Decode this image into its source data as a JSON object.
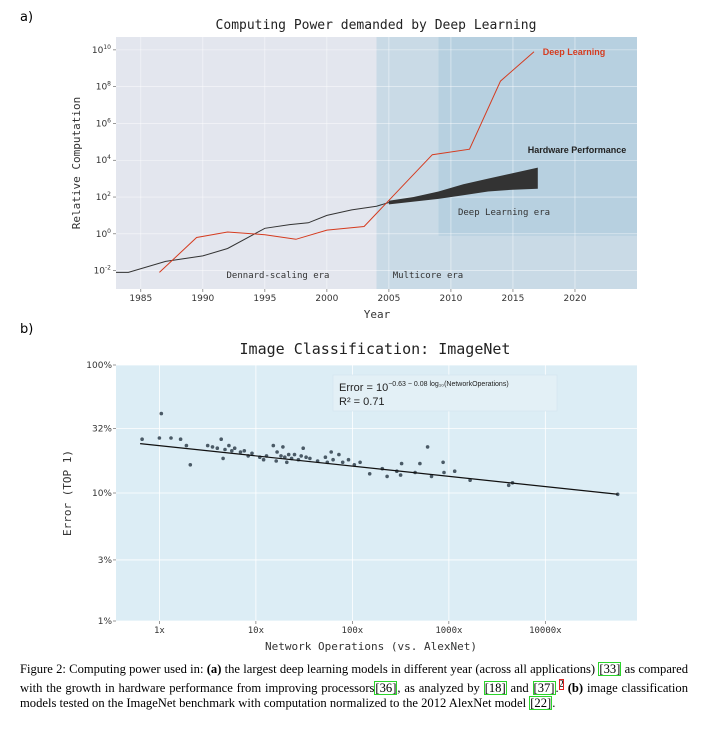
{
  "panel_a_label": "a)",
  "panel_b_label": "b)",
  "chart_data": [
    {
      "type": "line",
      "title": "Computing Power demanded by Deep Learning",
      "xlabel": "Year",
      "ylabel": "Relative Computation",
      "xlim": [
        1983,
        2025
      ],
      "ylim_exp": [
        -3,
        10.7
      ],
      "y_scale": "log",
      "x_ticks": [
        "1985",
        "1990",
        "1995",
        "2000",
        "2005",
        "2010",
        "2015",
        "2020"
      ],
      "y_ticks": [
        {
          "base": "10",
          "exp": "10"
        },
        {
          "base": "10",
          "exp": "8"
        },
        {
          "base": "10",
          "exp": "6"
        },
        {
          "base": "10",
          "exp": "4"
        },
        {
          "base": "10",
          "exp": "2"
        },
        {
          "base": "10",
          "exp": "0"
        },
        {
          "base": "10",
          "exp": "-2"
        }
      ],
      "y_tick_exps": [
        10,
        8,
        6,
        4,
        2,
        0,
        -2
      ],
      "eras": [
        {
          "label": "Dennard-scaling era",
          "x_start": 1983,
          "x_end": 2004,
          "color": "#e3e6ee"
        },
        {
          "label": "Multicore era",
          "x_start": 2004,
          "x_end": 2025,
          "color": "#c9dae6"
        },
        {
          "label": "Deep Learning era",
          "x_start": 2009,
          "x_end": 2025,
          "color": "#b7d0e0"
        }
      ],
      "series": [
        {
          "name": "Deep Learning",
          "color": "#d53b1f",
          "x": [
            1986.5,
            1989.5,
            1992,
            1995,
            1997.5,
            2000,
            2003,
            2008.5,
            2011.5,
            2014,
            2016.7
          ],
          "y_exp": [
            -2.1,
            -0.2,
            0.1,
            -0.05,
            -0.3,
            0.2,
            0.4,
            4.3,
            4.6,
            8.3,
            9.9
          ]
        },
        {
          "name": "",
          "color": "#333333",
          "x": [
            1983,
            1984,
            1987,
            1990,
            1992,
            1995,
            1997,
            1998.5,
            2000,
            2002,
            2004,
            2005
          ],
          "y_exp": [
            -2.1,
            -2.1,
            -1.5,
            -1.2,
            -0.8,
            0.3,
            0.5,
            0.6,
            1.0,
            1.3,
            1.5,
            1.7
          ]
        },
        {
          "name": "Hardware Performance",
          "color": "#333333",
          "type": "band",
          "x": [
            2005,
            2007,
            2009,
            2011,
            2013,
            2015,
            2017
          ],
          "y_low_exp": [
            1.6,
            1.75,
            1.9,
            2.1,
            2.3,
            2.4,
            2.45
          ],
          "y_high_exp": [
            1.8,
            2.0,
            2.3,
            2.7,
            3.0,
            3.3,
            3.6
          ]
        }
      ]
    },
    {
      "type": "scatter",
      "title": "Image Classification: ImageNet",
      "xlabel": "Network Operations (vs. AlexNet)",
      "ylabel": "Error (TOP 1)",
      "x_scale": "log",
      "y_scale": "log",
      "xlim_log10": [
        -0.45,
        4.95
      ],
      "ylim_log10": [
        0,
        2
      ],
      "x_ticks": [
        {
          "label": "1x",
          "log10": 0
        },
        {
          "label": "10x",
          "log10": 1
        },
        {
          "label": "100x",
          "log10": 2
        },
        {
          "label": "1000x",
          "log10": 3
        },
        {
          "label": "10000x",
          "log10": 4
        }
      ],
      "y_ticks": [
        {
          "label": "100%",
          "value": 100
        },
        {
          "label": "32%",
          "value": 32
        },
        {
          "label": "10%",
          "value": 10
        },
        {
          "label": "3%",
          "value": 3
        },
        {
          "label": "1%",
          "value": 1
        }
      ],
      "fit": {
        "intercept": 1.37,
        "slope": -0.08
      },
      "annotation": {
        "formula_prefix": "Error = 10",
        "formula_exponent": "−0.63 − 0.08 log₁₀(NetworkOperations)",
        "r2": "R² = 0.71"
      },
      "background": "#dcedf5",
      "point_color": "#4a5a66",
      "points": [
        {
          "x": -0.18,
          "y": 1.42
        },
        {
          "x": 0.02,
          "y": 1.62
        },
        {
          "x": 0.0,
          "y": 1.43
        },
        {
          "x": 0.12,
          "y": 1.43
        },
        {
          "x": 0.22,
          "y": 1.42
        },
        {
          "x": 0.28,
          "y": 1.37
        },
        {
          "x": 0.32,
          "y": 1.22
        },
        {
          "x": 0.5,
          "y": 1.37
        },
        {
          "x": 0.55,
          "y": 1.36
        },
        {
          "x": 0.6,
          "y": 1.35
        },
        {
          "x": 0.64,
          "y": 1.42
        },
        {
          "x": 0.66,
          "y": 1.27
        },
        {
          "x": 0.68,
          "y": 1.34
        },
        {
          "x": 0.72,
          "y": 1.37
        },
        {
          "x": 0.75,
          "y": 1.33
        },
        {
          "x": 0.78,
          "y": 1.35
        },
        {
          "x": 0.84,
          "y": 1.32
        },
        {
          "x": 0.88,
          "y": 1.33
        },
        {
          "x": 0.92,
          "y": 1.29
        },
        {
          "x": 0.96,
          "y": 1.31
        },
        {
          "x": 1.04,
          "y": 1.28
        },
        {
          "x": 1.08,
          "y": 1.26
        },
        {
          "x": 1.11,
          "y": 1.29
        },
        {
          "x": 1.18,
          "y": 1.37
        },
        {
          "x": 1.21,
          "y": 1.25
        },
        {
          "x": 1.22,
          "y": 1.32
        },
        {
          "x": 1.26,
          "y": 1.29
        },
        {
          "x": 1.28,
          "y": 1.36
        },
        {
          "x": 1.3,
          "y": 1.28
        },
        {
          "x": 1.32,
          "y": 1.24
        },
        {
          "x": 1.34,
          "y": 1.3
        },
        {
          "x": 1.37,
          "y": 1.27
        },
        {
          "x": 1.4,
          "y": 1.3
        },
        {
          "x": 1.44,
          "y": 1.26
        },
        {
          "x": 1.47,
          "y": 1.29
        },
        {
          "x": 1.49,
          "y": 1.35
        },
        {
          "x": 1.52,
          "y": 1.28
        },
        {
          "x": 1.56,
          "y": 1.27
        },
        {
          "x": 1.64,
          "y": 1.25
        },
        {
          "x": 1.72,
          "y": 1.28
        },
        {
          "x": 1.74,
          "y": 1.24
        },
        {
          "x": 1.78,
          "y": 1.32
        },
        {
          "x": 1.8,
          "y": 1.26
        },
        {
          "x": 1.86,
          "y": 1.3
        },
        {
          "x": 1.9,
          "y": 1.24
        },
        {
          "x": 1.96,
          "y": 1.26
        },
        {
          "x": 2.02,
          "y": 1.22
        },
        {
          "x": 2.08,
          "y": 1.24
        },
        {
          "x": 2.18,
          "y": 1.15
        },
        {
          "x": 2.31,
          "y": 1.19
        },
        {
          "x": 2.36,
          "y": 1.13
        },
        {
          "x": 2.46,
          "y": 1.17
        },
        {
          "x": 2.5,
          "y": 1.14
        },
        {
          "x": 2.51,
          "y": 1.23
        },
        {
          "x": 2.65,
          "y": 1.16
        },
        {
          "x": 2.7,
          "y": 1.23
        },
        {
          "x": 2.78,
          "y": 1.36
        },
        {
          "x": 2.82,
          "y": 1.13
        },
        {
          "x": 2.94,
          "y": 1.24
        },
        {
          "x": 2.95,
          "y": 1.16
        },
        {
          "x": 3.06,
          "y": 1.17
        },
        {
          "x": 3.22,
          "y": 1.1
        },
        {
          "x": 3.62,
          "y": 1.06
        },
        {
          "x": 3.66,
          "y": 1.08
        },
        {
          "x": 4.75,
          "y": 0.99
        }
      ]
    }
  ],
  "caption": {
    "figure_label": "Figure 2:",
    "text_1": " Computing power used in: ",
    "bold_a": "(a)",
    "text_2": " the largest deep learning models in different year (across all applications) ",
    "ref_1": "[33]",
    "text_3": " as compared with the growth in hardware performance from improving processors",
    "ref_2": "[36]",
    "text_4": ", as analyzed by ",
    "ref_3": "[18]",
    "text_5": " and ",
    "ref_4": "[37]",
    "text_6": ".",
    "footnote": "2",
    "bold_b": "(b)",
    "text_7": " image classification models tested on the ImageNet benchmark with computation normalized to the 2012 AlexNet model ",
    "ref_5": "[22]",
    "text_8": "."
  }
}
